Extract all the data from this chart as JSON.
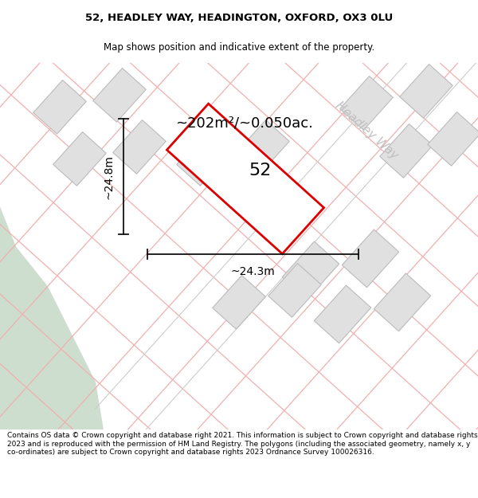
{
  "title_line1": "52, HEADLEY WAY, HEADINGTON, OXFORD, OX3 0LU",
  "title_line2": "Map shows position and indicative extent of the property.",
  "area_text": "~202m²/~0.050ac.",
  "label_52": "52",
  "dim_vertical": "~24.8m",
  "dim_horizontal": "~24.3m",
  "street_label": "Headley Way",
  "footer_text": "Contains OS data © Crown copyright and database right 2021. This information is subject to Crown copyright and database rights 2023 and is reproduced with the permission of HM Land Registry. The polygons (including the associated geometry, namely x, y co-ordinates) are subject to Crown copyright and database rights 2023 Ordnance Survey 100026316.",
  "map_bg": "#eeeeee",
  "building_fill": "#e0e0e0",
  "building_outline": "#bbbbbb",
  "road_lines_color": "#f0b0b0",
  "road_gray_color": "#cccccc",
  "plot_outline_color": "#dd0000",
  "dimension_line_color": "#111111",
  "green_fill": "#cddece",
  "street_text_color": "#c0c0c0",
  "title_fontsize": 9.5,
  "subtitle_fontsize": 8.5,
  "footer_fontsize": 6.5
}
